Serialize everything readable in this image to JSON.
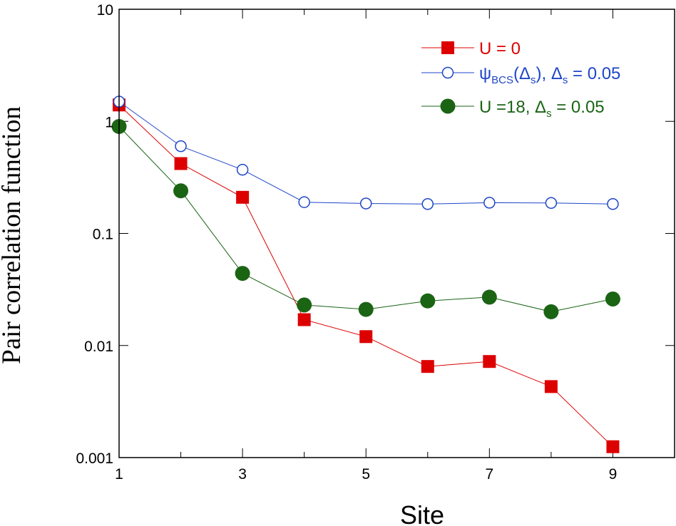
{
  "chart_data": {
    "type": "line",
    "title": "",
    "xlabel": "Site",
    "ylabel": "Pair correlation function",
    "xlim": [
      1,
      10
    ],
    "ylim": [
      0.001,
      10
    ],
    "yscale": "log",
    "x_ticks": [
      1,
      3,
      5,
      7,
      9
    ],
    "y_ticks": [
      0.001,
      0.01,
      0.1,
      1,
      10
    ],
    "x_tick_labels": [
      "1",
      "3",
      "5",
      "7",
      "9"
    ],
    "y_tick_labels": [
      "0.001",
      "0.01",
      "0.1",
      "1",
      "10"
    ],
    "grid": false,
    "legend_position": "top-right",
    "series": [
      {
        "name": "U = 0",
        "legend": {
          "main": "U = 0"
        },
        "color": "#dd0000",
        "marker": "filled-square",
        "x": [
          1,
          2,
          3,
          4,
          5,
          6,
          7,
          8,
          9
        ],
        "y": [
          1.4,
          0.42,
          0.21,
          0.017,
          0.012,
          0.0065,
          0.0072,
          0.0043,
          0.00125
        ]
      },
      {
        "name": "ψBCS(Δs), Δs = 0.05",
        "legend": {
          "psi": "ψ",
          "psi_sub": "BCS",
          "open": "(Δ",
          "open_sub": "s",
          "mid": "), Δ",
          "mid_sub": "s",
          "tail": " = 0.05"
        },
        "color": "#1e46c8",
        "marker": "open-circle",
        "x": [
          1,
          2,
          3,
          4,
          5,
          6,
          7,
          8,
          9
        ],
        "y": [
          1.5,
          0.6,
          0.37,
          0.19,
          0.185,
          0.183,
          0.188,
          0.187,
          0.183
        ]
      },
      {
        "name": "U =18, Δs = 0.05",
        "legend": {
          "main": "U =18, Δ",
          "main_sub": "s",
          "tail": " = 0.05"
        },
        "color": "#1a6414",
        "marker": "filled-circle",
        "x": [
          1,
          2,
          3,
          4,
          5,
          6,
          7,
          8,
          9
        ],
        "y": [
          0.9,
          0.24,
          0.044,
          0.023,
          0.021,
          0.025,
          0.027,
          0.02,
          0.026
        ]
      }
    ]
  }
}
